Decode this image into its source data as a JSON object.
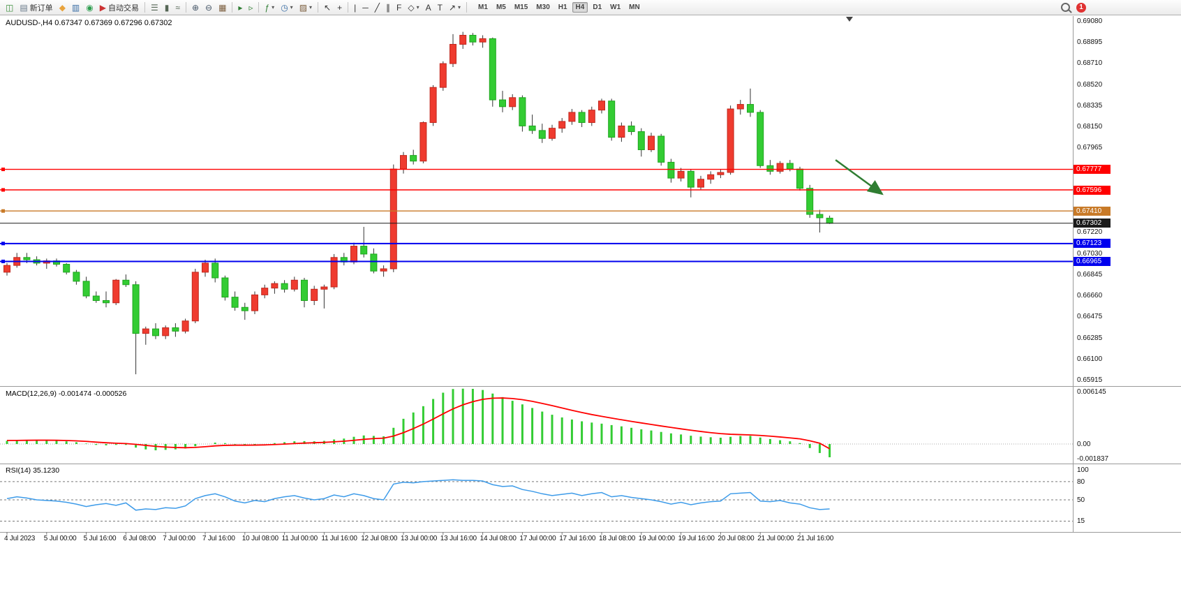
{
  "toolbar": {
    "caret_glyph": "▾",
    "items": [
      {
        "name": "new-chart",
        "glyph": "◫",
        "color": "#3c8f3c"
      },
      {
        "name": "new-order",
        "glyph": "▤",
        "color": "#667788",
        "label": "新订单"
      },
      {
        "name": "metaquotes",
        "glyph": "◆",
        "color": "#e8a33d"
      },
      {
        "name": "market-watch",
        "glyph": "▥",
        "color": "#3a6ea5"
      },
      {
        "name": "community",
        "glyph": "◉",
        "color": "#2e9e4f"
      },
      {
        "name": "auto-trading",
        "glyph": "▶",
        "color": "#cc3333",
        "label": "自动交易"
      },
      {
        "sep": true
      },
      {
        "name": "chart-bars",
        "glyph": "☰",
        "color": "#556655"
      },
      {
        "name": "chart-candles",
        "glyph": "▮",
        "color": "#556655"
      },
      {
        "name": "chart-line",
        "glyph": "≈",
        "color": "#556655"
      },
      {
        "sep": true
      },
      {
        "name": "zoom-in",
        "glyph": "⊕",
        "color": "#445566"
      },
      {
        "name": "zoom-out",
        "glyph": "⊖",
        "color": "#445566"
      },
      {
        "name": "tile-windows",
        "glyph": "▦",
        "color": "#7a5c3c"
      },
      {
        "sep": true
      },
      {
        "name": "auto-scroll",
        "glyph": "▸",
        "color": "#2e7d32"
      },
      {
        "name": "chart-shift",
        "glyph": "▹",
        "color": "#2e7d32"
      },
      {
        "sep": true
      },
      {
        "name": "indicators",
        "glyph": "ƒ",
        "color": "#2e7d32",
        "dropdown": true
      },
      {
        "name": "periods",
        "glyph": "◷",
        "color": "#3a6ea5",
        "dropdown": true
      },
      {
        "name": "templates",
        "glyph": "▨",
        "color": "#7a5c3c",
        "dropdown": true
      },
      {
        "sep": true
      },
      {
        "name": "cursor",
        "glyph": "↖",
        "color": "#333333"
      },
      {
        "name": "crosshair",
        "glyph": "+",
        "color": "#333333"
      },
      {
        "sep": true
      },
      {
        "name": "vertical-line",
        "glyph": "|",
        "color": "#333333"
      },
      {
        "name": "horizontal-line",
        "glyph": "─",
        "color": "#333333"
      },
      {
        "name": "trendline",
        "glyph": "╱",
        "color": "#333333"
      },
      {
        "name": "channel",
        "glyph": "∥",
        "color": "#333333"
      },
      {
        "name": "fibonacci",
        "glyph": "F",
        "color": "#333333"
      },
      {
        "name": "shapes",
        "glyph": "◇",
        "color": "#333333",
        "dropdown": true
      },
      {
        "name": "text",
        "glyph": "A",
        "color": "#333333"
      },
      {
        "name": "label",
        "glyph": "T",
        "color": "#333333"
      },
      {
        "name": "arrows",
        "glyph": "↗",
        "color": "#333333",
        "dropdown": true
      },
      {
        "sep": true
      }
    ],
    "timeframes": [
      "M1",
      "M5",
      "M15",
      "M30",
      "H1",
      "H4",
      "D1",
      "W1",
      "MN"
    ],
    "active_timeframe": "H4",
    "notification_count": "1"
  },
  "chart": {
    "title": "AUDUSD-,H4 0.67347 0.67369 0.67296 0.67302",
    "symbol": "AUDUSD-",
    "period": "H4",
    "ohlc": {
      "open": "0.67347",
      "high": "0.67369",
      "low": "0.67296",
      "close": "0.67302"
    }
  },
  "macd": {
    "label": "MACD(12,26,9) -0.001474 -0.000526",
    "axis_labels": [
      "0.006145",
      "0.00",
      "-0.001837"
    ]
  },
  "rsi": {
    "label": "RSI(14) 35.1230",
    "axis_labels": [
      "100",
      "80",
      "50",
      "15"
    ]
  },
  "chart_data": [
    {
      "type": "candlestick",
      "title": "AUDUSD-,H4",
      "ylim": [
        0.6586,
        0.6913
      ],
      "y_axis_labels": [
        "0.69080",
        "0.68895",
        "0.68710",
        "0.68520",
        "0.68335",
        "0.68150",
        "0.67965",
        "0.67220",
        "0.67030",
        "0.66845",
        "0.66660",
        "0.66475",
        "0.66285",
        "0.66100",
        "0.65915"
      ],
      "x_labels": [
        "4 Jul 2023",
        "5 Jul 00:00",
        "5 Jul 16:00",
        "6 Jul 08:00",
        "7 Jul 00:00",
        "7 Jul 16:00",
        "10 Jul 08:00",
        "11 Jul 00:00",
        "11 Jul 16:00",
        "12 Jul 08:00",
        "13 Jul 00:00",
        "13 Jul 16:00",
        "14 Jul 08:00",
        "17 Jul 00:00",
        "17 Jul 16:00",
        "18 Jul 08:00",
        "19 Jul 00:00",
        "19 Jul 16:00",
        "20 Jul 08:00",
        "21 Jul 00:00",
        "21 Jul 16:00"
      ],
      "colors": {
        "bull": "#ef3b2f",
        "bull_border": "#c0281e",
        "bear": "#33cc33",
        "bear_border": "#1fa51f",
        "wick": "#333333"
      },
      "candles": [
        [
          0.6687,
          0.6695,
          0.6684,
          0.6693
        ],
        [
          0.6693,
          0.6704,
          0.6691,
          0.67
        ],
        [
          0.67,
          0.6704,
          0.6695,
          0.6698
        ],
        [
          0.6698,
          0.6701,
          0.6693,
          0.6695
        ],
        [
          0.6695,
          0.6699,
          0.669,
          0.6697
        ],
        [
          0.6697,
          0.6699,
          0.6692,
          0.6694
        ],
        [
          0.6694,
          0.6695,
          0.6685,
          0.6687
        ],
        [
          0.6687,
          0.6689,
          0.6676,
          0.6679
        ],
        [
          0.6679,
          0.6683,
          0.6664,
          0.6666
        ],
        [
          0.6666,
          0.667,
          0.666,
          0.6662
        ],
        [
          0.6662,
          0.667,
          0.6656,
          0.666
        ],
        [
          0.666,
          0.6681,
          0.6658,
          0.668
        ],
        [
          0.668,
          0.6685,
          0.6674,
          0.6676
        ],
        [
          0.6676,
          0.6679,
          0.6597,
          0.6633
        ],
        [
          0.6633,
          0.6639,
          0.6623,
          0.6637
        ],
        [
          0.6637,
          0.6642,
          0.6628,
          0.6631
        ],
        [
          0.6631,
          0.664,
          0.6628,
          0.6638
        ],
        [
          0.6638,
          0.6642,
          0.663,
          0.6635
        ],
        [
          0.6635,
          0.6646,
          0.6633,
          0.6644
        ],
        [
          0.6644,
          0.669,
          0.6642,
          0.6687
        ],
        [
          0.6687,
          0.6698,
          0.6683,
          0.6695
        ],
        [
          0.6695,
          0.6699,
          0.6678,
          0.6682
        ],
        [
          0.6682,
          0.6684,
          0.6662,
          0.6665
        ],
        [
          0.6665,
          0.667,
          0.6653,
          0.6656
        ],
        [
          0.6656,
          0.666,
          0.6645,
          0.6653
        ],
        [
          0.6653,
          0.667,
          0.665,
          0.6667
        ],
        [
          0.6667,
          0.6676,
          0.6664,
          0.6673
        ],
        [
          0.6673,
          0.6679,
          0.6668,
          0.6677
        ],
        [
          0.6677,
          0.668,
          0.6669,
          0.6672
        ],
        [
          0.6672,
          0.6683,
          0.667,
          0.668
        ],
        [
          0.668,
          0.6682,
          0.6656,
          0.6662
        ],
        [
          0.6662,
          0.6675,
          0.6658,
          0.6672
        ],
        [
          0.6672,
          0.6676,
          0.6655,
          0.6674
        ],
        [
          0.6674,
          0.6703,
          0.6672,
          0.67
        ],
        [
          0.67,
          0.6704,
          0.6693,
          0.6696
        ],
        [
          0.6696,
          0.6713,
          0.6694,
          0.671
        ],
        [
          0.671,
          0.6727,
          0.67,
          0.6703
        ],
        [
          0.6703,
          0.6708,
          0.6686,
          0.6688
        ],
        [
          0.6688,
          0.6693,
          0.6683,
          0.669
        ],
        [
          0.669,
          0.6782,
          0.6687,
          0.6778
        ],
        [
          0.6778,
          0.6793,
          0.6774,
          0.679
        ],
        [
          0.679,
          0.6795,
          0.6782,
          0.6785
        ],
        [
          0.6785,
          0.682,
          0.6783,
          0.6819
        ],
        [
          0.6819,
          0.6852,
          0.6816,
          0.685
        ],
        [
          0.685,
          0.6873,
          0.6847,
          0.6871
        ],
        [
          0.6871,
          0.6897,
          0.6868,
          0.6888
        ],
        [
          0.6888,
          0.6899,
          0.6884,
          0.6896
        ],
        [
          0.6896,
          0.6898,
          0.6887,
          0.689
        ],
        [
          0.689,
          0.6896,
          0.6885,
          0.6893
        ],
        [
          0.6893,
          0.6894,
          0.6833,
          0.6839
        ],
        [
          0.6839,
          0.6847,
          0.6828,
          0.6833
        ],
        [
          0.6833,
          0.6844,
          0.683,
          0.6841
        ],
        [
          0.6841,
          0.6843,
          0.6811,
          0.6816
        ],
        [
          0.6816,
          0.6826,
          0.6809,
          0.6812
        ],
        [
          0.6812,
          0.6818,
          0.6801,
          0.6805
        ],
        [
          0.6805,
          0.6817,
          0.6803,
          0.6814
        ],
        [
          0.6814,
          0.6823,
          0.681,
          0.682
        ],
        [
          0.682,
          0.6831,
          0.6817,
          0.6828
        ],
        [
          0.6828,
          0.683,
          0.6815,
          0.6819
        ],
        [
          0.6819,
          0.6833,
          0.6816,
          0.683
        ],
        [
          0.683,
          0.684,
          0.6827,
          0.6838
        ],
        [
          0.6838,
          0.684,
          0.6803,
          0.6806
        ],
        [
          0.6806,
          0.6819,
          0.6802,
          0.6816
        ],
        [
          0.6816,
          0.682,
          0.6808,
          0.6811
        ],
        [
          0.6811,
          0.6814,
          0.6789,
          0.6795
        ],
        [
          0.6795,
          0.681,
          0.6793,
          0.6807
        ],
        [
          0.6807,
          0.6809,
          0.6781,
          0.6784
        ],
        [
          0.6784,
          0.6787,
          0.6766,
          0.677
        ],
        [
          0.677,
          0.6779,
          0.6767,
          0.6776
        ],
        [
          0.6776,
          0.6778,
          0.6753,
          0.6762
        ],
        [
          0.6762,
          0.6772,
          0.676,
          0.6769
        ],
        [
          0.6769,
          0.6776,
          0.6765,
          0.6773
        ],
        [
          0.6773,
          0.6778,
          0.677,
          0.6775
        ],
        [
          0.6775,
          0.6834,
          0.6773,
          0.6831
        ],
        [
          0.6831,
          0.6839,
          0.6826,
          0.6835
        ],
        [
          0.6835,
          0.6849,
          0.6824,
          0.6828
        ],
        [
          0.6828,
          0.683,
          0.6779,
          0.6781
        ],
        [
          0.6781,
          0.6786,
          0.6773,
          0.6776
        ],
        [
          0.6776,
          0.6785,
          0.6774,
          0.6783
        ],
        [
          0.6783,
          0.6786,
          0.6776,
          0.6778
        ],
        [
          0.6778,
          0.678,
          0.6759,
          0.6761
        ],
        [
          0.6761,
          0.6764,
          0.6735,
          0.6738
        ],
        [
          0.6738,
          0.6742,
          0.6722,
          0.6735
        ],
        [
          0.67347,
          0.67369,
          0.67296,
          0.67302
        ]
      ],
      "hlines": [
        {
          "price": 0.67777,
          "label": "0.67777",
          "color": "#ff0000",
          "width": 1.4
        },
        {
          "price": 0.67596,
          "label": "0.67596",
          "color": "#ff0000",
          "width": 1.4
        },
        {
          "price": 0.6741,
          "label": "0.67410",
          "color": "#c87a28",
          "width": 1.4
        },
        {
          "price": 0.67302,
          "label": "0.67302",
          "color": "#1a1a1a",
          "width": 1,
          "current": true
        },
        {
          "price": 0.67123,
          "label": "0.67123",
          "color": "#0000ee",
          "width": 2
        },
        {
          "price": 0.66965,
          "label": "0.66965",
          "color": "#0000ee",
          "width": 2
        }
      ],
      "arrow": {
        "from_bar": 83.6,
        "from_price": 0.6786,
        "to_bar": 88.3,
        "to_price": 0.6756,
        "color": "#2f7d32"
      },
      "shift_marker_bar": 85
    },
    {
      "type": "bar",
      "name": "MACD histogram with signal line",
      "ylim": [
        -0.001837,
        0.006145
      ],
      "color": "#33cc33",
      "signal_color": "#ff0000",
      "values": [
        0.00035,
        0.00042,
        0.00045,
        0.00044,
        0.0004,
        0.00036,
        0.0003,
        0.0002,
        5e-05,
        -0.0001,
        -0.00015,
        -0.0001,
        -0.0001,
        -0.0004,
        -0.0006,
        -0.0007,
        -0.00065,
        -0.0006,
        -0.0005,
        -0.00025,
        0.0,
        0.00015,
        0.0001,
        -5e-05,
        -0.00015,
        -0.0001,
        0.0,
        0.0001,
        0.0002,
        0.0003,
        0.00032,
        0.0003,
        0.00035,
        0.0005,
        0.0006,
        0.0008,
        0.00095,
        0.0009,
        0.00085,
        0.0018,
        0.0028,
        0.0035,
        0.0042,
        0.005,
        0.0057,
        0.0061,
        0.006145,
        0.00612,
        0.006,
        0.0056,
        0.0052,
        0.0048,
        0.0044,
        0.004,
        0.0036,
        0.00325,
        0.00295,
        0.00272,
        0.00252,
        0.00238,
        0.00226,
        0.0021,
        0.00196,
        0.0018,
        0.00163,
        0.0015,
        0.00134,
        0.00118,
        0.00106,
        0.00092,
        0.00082,
        0.00075,
        0.0007,
        0.0008,
        0.00088,
        0.0009,
        0.00072,
        0.00055,
        0.00042,
        0.0003,
        0.0001,
        -0.00045,
        -0.001,
        -0.001474
      ],
      "signal": [
        0.0004,
        0.0004,
        0.00041,
        0.00042,
        0.00042,
        0.00041,
        0.00039,
        0.00035,
        0.00029,
        0.00021,
        0.00014,
        9e-05,
        5e-05,
        -4e-05,
        -0.00015,
        -0.00026,
        -0.00034,
        -0.00039,
        -0.00041,
        -0.00038,
        -0.0003,
        -0.00021,
        -0.00015,
        -0.00013,
        -0.00013,
        -0.00012,
        -0.0001,
        -6e-05,
        -1e-05,
        5e-05,
        0.0001,
        0.00014,
        0.00018,
        0.00024,
        0.00031,
        0.00041,
        0.00052,
        0.0006,
        0.00065,
        0.00088,
        0.00126,
        0.00171,
        0.00221,
        0.00277,
        0.00335,
        0.0039,
        0.00435,
        0.0047,
        0.00496,
        0.00509,
        0.00511,
        0.00505,
        0.00492,
        0.00474,
        0.00451,
        0.00426,
        0.004,
        0.00374,
        0.0035,
        0.00327,
        0.00307,
        0.00288,
        0.00269,
        0.00251,
        0.00234,
        0.00217,
        0.002,
        0.00184,
        0.00168,
        0.00153,
        0.00139,
        0.00126,
        0.00115,
        0.00108,
        0.00104,
        0.00101,
        0.00095,
        0.00087,
        0.00078,
        0.00068,
        0.00057,
        0.00036,
        9e-05,
        -0.000526
      ]
    },
    {
      "type": "line",
      "name": "RSI(14)",
      "ylim": [
        0,
        100
      ],
      "color": "#3d9be9",
      "levels": [
        80,
        50,
        15
      ],
      "values": [
        52,
        55,
        53,
        50,
        49,
        48,
        46,
        43,
        39,
        42,
        44,
        41,
        45,
        33,
        35,
        34,
        37,
        36,
        40,
        52,
        57,
        60,
        55,
        48,
        45,
        49,
        47,
        52,
        55,
        57,
        53,
        50,
        52,
        58,
        55,
        60,
        57,
        52,
        50,
        76,
        79,
        78,
        80,
        81,
        82,
        83,
        82,
        82,
        81,
        75,
        72,
        73,
        67,
        64,
        60,
        57,
        59,
        61,
        57,
        60,
        62,
        55,
        57,
        54,
        52,
        50,
        47,
        43,
        46,
        42,
        45,
        47,
        48,
        60,
        61,
        62,
        48,
        47,
        49,
        45,
        43,
        37,
        34,
        35.12
      ]
    }
  ]
}
